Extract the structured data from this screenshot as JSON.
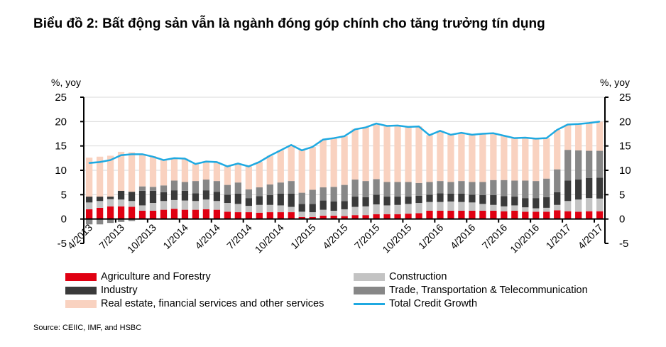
{
  "title": "Biểu đồ 2: Bất động sản vẫn là ngành đóng góp chính cho tăng trưởng tín dụng",
  "source": "Source: CEIIC, IMF, and HSBC",
  "chart_data": {
    "type": "bar",
    "stacked": true,
    "title": "",
    "ylabel_left": "%, yoy",
    "ylabel_right": "%, yoy",
    "ylim": [
      -5,
      25
    ],
    "yticks": [
      -5,
      0,
      5,
      10,
      15,
      20,
      25
    ],
    "grid": true,
    "legend_position": "bottom",
    "categories": [
      "4/2013",
      "5/2013",
      "6/2013",
      "7/2013",
      "8/2013",
      "9/2013",
      "10/2013",
      "11/2013",
      "12/2013",
      "1/2014",
      "2/2014",
      "3/2014",
      "4/2014",
      "5/2014",
      "6/2014",
      "7/2014",
      "8/2014",
      "9/2014",
      "10/2014",
      "11/2014",
      "12/2014",
      "1/2015",
      "2/2015",
      "3/2015",
      "4/2015",
      "5/2015",
      "6/2015",
      "7/2015",
      "8/2015",
      "9/2015",
      "10/2015",
      "11/2015",
      "12/2015",
      "1/2016",
      "2/2016",
      "3/2016",
      "4/2016",
      "5/2016",
      "6/2016",
      "7/2016",
      "8/2016",
      "9/2016",
      "10/2016",
      "11/2016",
      "12/2016",
      "1/2017",
      "2/2017",
      "3/2017",
      "4/2017"
    ],
    "tick_labels": [
      "4/2013",
      "7/2013",
      "10/2013",
      "1/2014",
      "4/2014",
      "7/2014",
      "10/2014",
      "1/2015",
      "4/2015",
      "7/2015",
      "10/2015",
      "1/2016",
      "4/2016",
      "7/2016",
      "10/2016",
      "1/2017",
      "4/2017"
    ],
    "series": [
      {
        "name": "Agriculture and Forestry",
        "kind": "bar",
        "color": "#e00012",
        "values": [
          2.0,
          2.3,
          2.6,
          2.6,
          2.5,
          1.7,
          1.7,
          1.9,
          2.1,
          1.9,
          1.9,
          2.0,
          1.9,
          1.5,
          1.4,
          1.4,
          1.3,
          1.4,
          1.4,
          1.4,
          0.4,
          0.4,
          0.7,
          0.7,
          0.6,
          0.8,
          0.8,
          1.0,
          1.0,
          1.0,
          1.1,
          1.2,
          1.7,
          1.7,
          1.7,
          1.7,
          1.7,
          1.7,
          1.7,
          1.6,
          1.7,
          1.5,
          1.5,
          1.5,
          1.8,
          1.6,
          1.5,
          1.6,
          1.6
        ]
      },
      {
        "name": "Construction",
        "kind": "bar",
        "color": "#c3c3c3",
        "values": [
          1.4,
          1.4,
          1.5,
          1.4,
          1.2,
          1.1,
          1.6,
          1.8,
          1.8,
          1.9,
          1.8,
          2.0,
          1.8,
          1.8,
          1.7,
          1.3,
          1.6,
          1.5,
          1.4,
          1.1,
          1.1,
          1.0,
          1.2,
          1.0,
          1.4,
          1.7,
          1.8,
          2.0,
          1.8,
          1.9,
          2.0,
          2.1,
          1.8,
          1.8,
          1.9,
          1.8,
          1.7,
          1.4,
          1.2,
          1.0,
          1.1,
          0.9,
          0.7,
          0.8,
          1.1,
          2.1,
          2.5,
          2.7,
          2.6
        ]
      },
      {
        "name": "Industry",
        "kind": "bar",
        "color": "#3a3a3a",
        "values": [
          1.2,
          0.9,
          0.5,
          1.8,
          1.9,
          3.0,
          2.5,
          1.8,
          2.0,
          2.0,
          1.6,
          1.9,
          1.9,
          1.7,
          2.1,
          1.6,
          1.8,
          2.0,
          2.4,
          2.7,
          1.6,
          1.7,
          1.9,
          1.9,
          1.7,
          2.1,
          1.9,
          2.0,
          1.8,
          1.7,
          1.5,
          1.5,
          1.5,
          1.8,
          1.6,
          1.7,
          1.6,
          1.8,
          2.0,
          2.1,
          1.8,
          1.9,
          2.1,
          2.2,
          2.6,
          4.2,
          4.1,
          4.1,
          4.3
        ]
      },
      {
        "name": "Trade, Transportation & Telecommunication",
        "kind": "bar",
        "color": "#878787",
        "values": [
          -1.1,
          -1.1,
          -0.8,
          -0.6,
          -0.4,
          0.9,
          0.8,
          1.4,
          2.0,
          1.8,
          2.5,
          2.2,
          2.2,
          2.0,
          2.3,
          1.8,
          1.8,
          2.2,
          2.3,
          2.6,
          2.3,
          2.9,
          2.7,
          3.0,
          3.3,
          3.5,
          3.3,
          3.2,
          3.0,
          3.0,
          3.0,
          2.6,
          2.6,
          2.5,
          2.4,
          2.6,
          2.6,
          2.7,
          3.1,
          3.3,
          3.3,
          3.6,
          3.5,
          3.8,
          4.7,
          6.3,
          6.0,
          5.6,
          5.5
        ]
      },
      {
        "name": "Real estate, financial services and other services",
        "kind": "bar",
        "color": "#f9d2c0",
        "values": [
          8.0,
          8.2,
          8.4,
          8.0,
          8.1,
          6.6,
          6.3,
          5.2,
          4.6,
          4.8,
          3.5,
          3.7,
          3.9,
          3.8,
          3.9,
          4.7,
          5.2,
          5.9,
          6.6,
          7.4,
          8.8,
          8.8,
          9.8,
          9.9,
          10.0,
          10.4,
          11.1,
          11.4,
          11.5,
          11.6,
          11.3,
          11.6,
          9.6,
          10.3,
          9.7,
          9.9,
          9.7,
          9.9,
          9.6,
          9.1,
          8.7,
          8.8,
          8.7,
          8.3,
          8.1,
          5.2,
          5.4,
          5.7,
          6.0
        ]
      },
      {
        "name": "Total Credit Growth",
        "kind": "line",
        "color": "#1fa9e1",
        "values": [
          11.5,
          11.7,
          12.1,
          13.1,
          13.3,
          13.3,
          12.8,
          12.1,
          12.5,
          12.4,
          11.3,
          11.8,
          11.7,
          10.8,
          11.4,
          10.8,
          11.7,
          13.0,
          14.1,
          15.2,
          14.1,
          14.8,
          16.3,
          16.6,
          17.0,
          18.4,
          18.8,
          19.6,
          19.1,
          19.2,
          18.9,
          19.0,
          17.2,
          18.1,
          17.3,
          17.7,
          17.3,
          17.5,
          17.6,
          17.1,
          16.6,
          16.7,
          16.5,
          16.6,
          18.3,
          19.4,
          19.5,
          19.7,
          20.0
        ]
      }
    ]
  }
}
